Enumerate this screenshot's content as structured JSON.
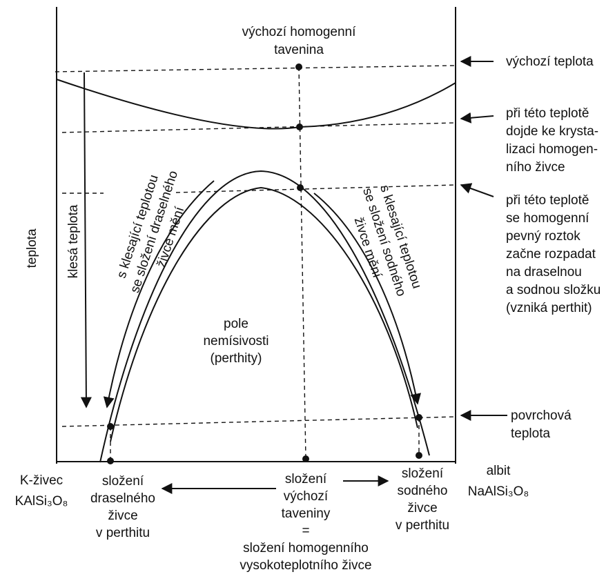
{
  "axis_label": "teplota",
  "arrow_label": "klesá teplota",
  "top_label": [
    "výchozí homogenní",
    "tavenina"
  ],
  "right_labels": {
    "start_temp": "výchozí teplota",
    "crystallization": [
      "při této teplotě",
      "dojde ke krysta-",
      "lizaci homogen-",
      "ního živce"
    ],
    "exsolution": [
      "při této teplotě",
      "se homogenní",
      "pevný roztok",
      "začne rozpadat",
      "na draselnou",
      "a sodnou složku",
      "(vzniká perthit)"
    ],
    "surface_temp": [
      "povrchová",
      "teplota"
    ]
  },
  "left_curve_label": [
    "s klesající teplotou",
    "se složení draselného",
    "živce mění"
  ],
  "right_curve_label": [
    "s klesající teplotou",
    "se složení sodného",
    "živce mění"
  ],
  "field_label": [
    "pole",
    "nemísivosti",
    "(perthity)"
  ],
  "left_end": [
    "K-živec",
    "KAlSi₃O₈"
  ],
  "right_end": [
    "albit",
    "NaAlSi₃O₈"
  ],
  "bottom_left": [
    "složení",
    "draselného",
    "živce",
    "v perthitu"
  ],
  "bottom_center": [
    "složení",
    "výchozí",
    "taveniny",
    "=",
    "složení homogenního",
    "vysokoteplotního živce"
  ],
  "bottom_right": [
    "složení",
    "sodného",
    "živce",
    "v perthitu"
  ]
}
